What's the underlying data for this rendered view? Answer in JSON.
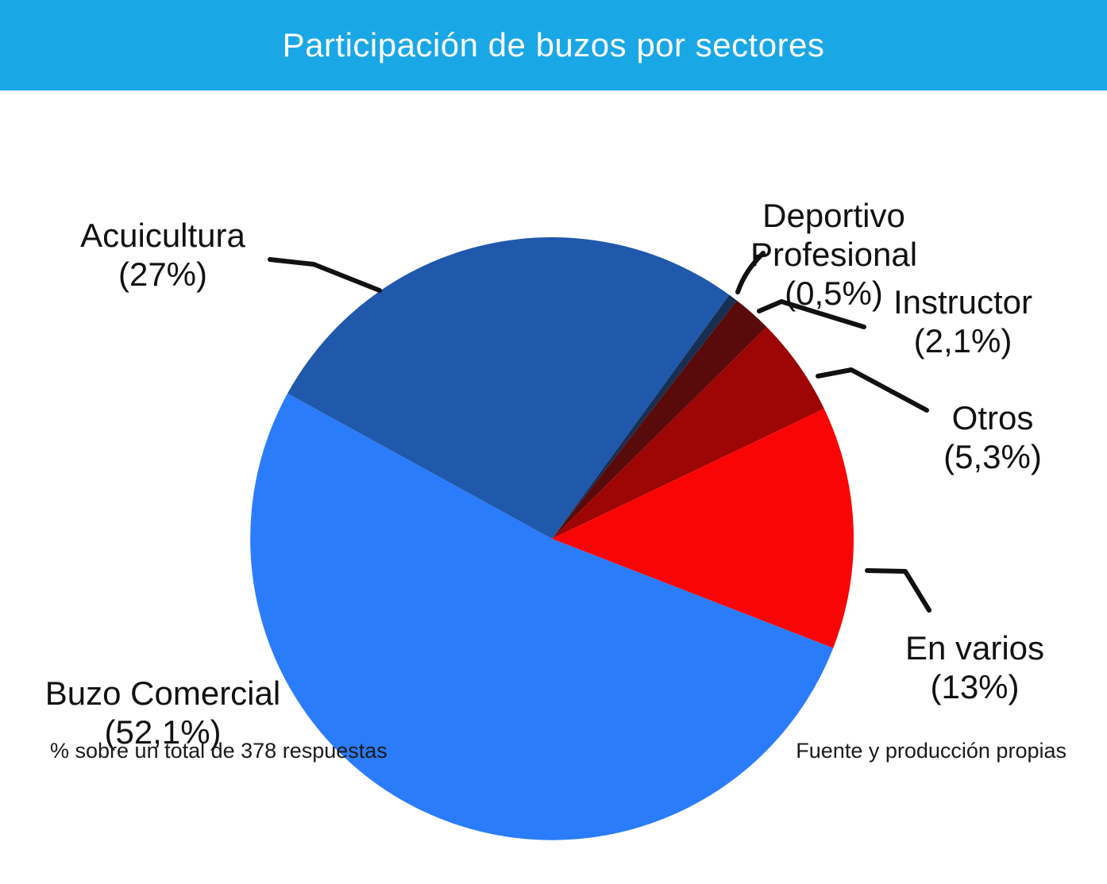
{
  "header": {
    "title": "Participación de buzos por sectores",
    "bg_color": "#1AA7E5",
    "text_color": "#FFFFFF"
  },
  "chart_data": {
    "type": "pie",
    "title": "Participación de buzos por sectores",
    "values_are": "percent",
    "start_angle_deg": -61.2,
    "direction": "clockwise",
    "slices": [
      {
        "label": "Acuicultura",
        "value": 27,
        "display": "(27%)",
        "color": "#2058AC"
      },
      {
        "label": "Deportivo Profesional",
        "value": 0.5,
        "display": "(0,5%)",
        "color": "#182F52"
      },
      {
        "label": "Instructor",
        "value": 2.1,
        "display": "(2,1%)",
        "color": "#590A0A"
      },
      {
        "label": "Otros",
        "value": 5.3,
        "display": "(5,3%)",
        "color": "#9E0505"
      },
      {
        "label": "En varios",
        "value": 13,
        "display": "(13%)",
        "color": "#FA0505"
      },
      {
        "label": "Buzo Comercial",
        "value": 52.1,
        "display": "(52,1%)",
        "color": "#2B7CFA"
      }
    ],
    "footnote_left": "% sobre un total de 378 respuestas",
    "footnote_right": "Fuente y producción propias",
    "legend_position": "callout-labels",
    "grid": false
  }
}
